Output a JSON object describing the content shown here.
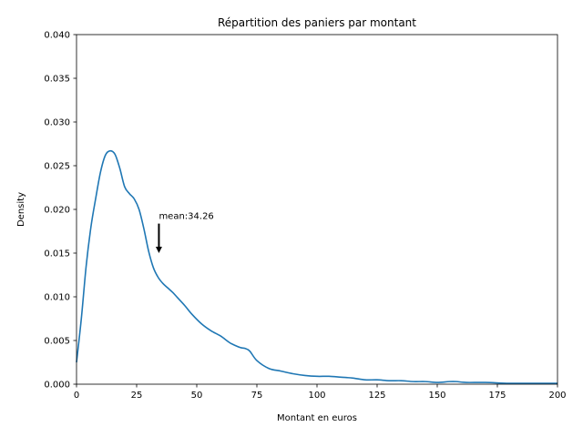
{
  "chart_data": {
    "type": "line",
    "title": "Répartition des paniers par montant",
    "xlabel": "Montant en euros",
    "ylabel": "Density",
    "xlim": [
      0,
      200
    ],
    "ylim": [
      0,
      0.04
    ],
    "grid": false,
    "x_ticks": [
      "0",
      "25",
      "50",
      "75",
      "100",
      "125",
      "150",
      "175",
      "200"
    ],
    "y_ticks": [
      "0.000",
      "0.005",
      "0.010",
      "0.015",
      "0.020",
      "0.025",
      "0.030",
      "0.035",
      "0.040"
    ],
    "series": [
      {
        "color": "#1f77b4",
        "x": [
          0,
          2,
          4,
          6,
          8,
          10,
          12,
          14,
          16,
          18,
          20,
          22,
          24,
          26,
          28,
          30,
          32,
          34,
          36,
          38,
          40,
          42,
          45,
          48,
          52,
          56,
          60,
          64,
          68,
          70,
          72,
          75,
          80,
          85,
          90,
          95,
          100,
          105,
          110,
          115,
          120,
          125,
          130,
          135,
          140,
          145,
          150,
          155,
          158,
          162,
          170,
          180,
          190,
          200
        ],
        "y": [
          0.0025,
          0.0075,
          0.0135,
          0.018,
          0.0213,
          0.0243,
          0.0262,
          0.0267,
          0.0263,
          0.0247,
          0.0226,
          0.0218,
          0.0212,
          0.02,
          0.0178,
          0.0152,
          0.0133,
          0.0122,
          0.0115,
          0.011,
          0.0105,
          0.0099,
          0.009,
          0.008,
          0.0069,
          0.0061,
          0.0055,
          0.0047,
          0.0042,
          0.0041,
          0.0038,
          0.0027,
          0.0018,
          0.0015,
          0.0012,
          0.001,
          0.0009,
          0.0009,
          0.0008,
          0.0007,
          0.0005,
          0.0005,
          0.0004,
          0.0004,
          0.0003,
          0.0003,
          0.0002,
          0.0003,
          0.0003,
          0.0002,
          0.0002,
          0.0001,
          0.0001,
          0.0001
        ]
      }
    ],
    "annotation": {
      "text": "mean:34.26",
      "x": 34.26,
      "y": 0.015,
      "text_y": 0.019,
      "arrow": "down"
    }
  }
}
